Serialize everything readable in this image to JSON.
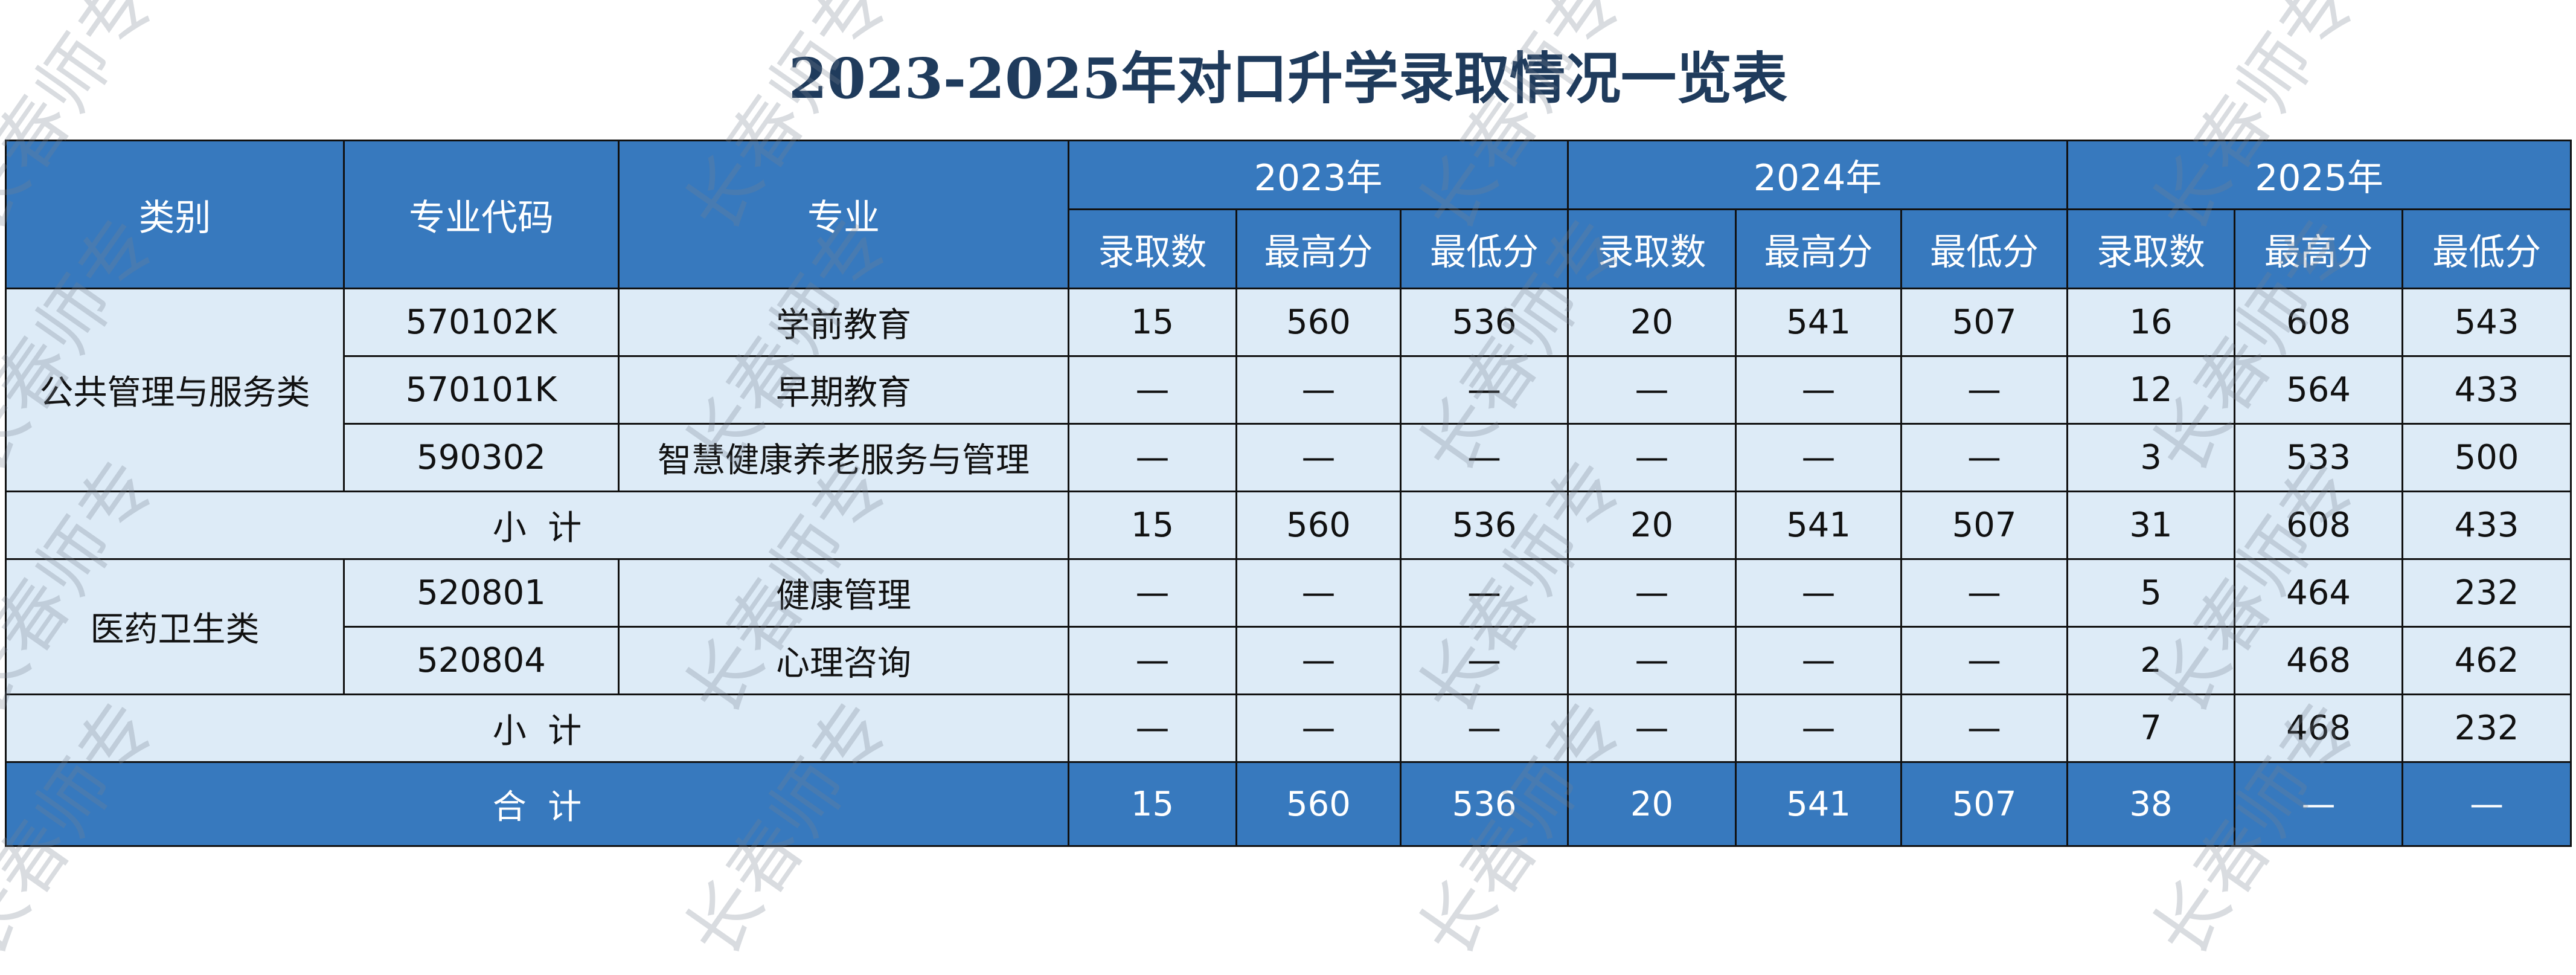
{
  "title": "2023-2025年对口升学录取情况一览表",
  "watermark": "长春师专",
  "colors": {
    "header_bg": "#3779be",
    "body_bg": "#ddebf7",
    "title": "#1f3b5c"
  },
  "header": {
    "category": "类别",
    "code": "专业代码",
    "major": "专业",
    "years": [
      "2023年",
      "2024年",
      "2025年"
    ],
    "sub": [
      "录取数",
      "最高分",
      "最低分"
    ]
  },
  "groups": [
    {
      "category": "公共管理与服务类",
      "rows": [
        {
          "code": "570102K",
          "major": "学前教育",
          "values": [
            "15",
            "560",
            "536",
            "20",
            "541",
            "507",
            "16",
            "608",
            "543"
          ]
        },
        {
          "code": "570101K",
          "major": "早期教育",
          "values": [
            "—",
            "—",
            "—",
            "—",
            "—",
            "—",
            "12",
            "564",
            "433"
          ]
        },
        {
          "code": "590302",
          "major": "智慧健康养老服务与管理",
          "values": [
            "—",
            "—",
            "—",
            "—",
            "—",
            "—",
            "3",
            "533",
            "500"
          ]
        }
      ],
      "subtotal": {
        "label": "小  计",
        "values": [
          "15",
          "560",
          "536",
          "20",
          "541",
          "507",
          "31",
          "608",
          "433"
        ]
      }
    },
    {
      "category": "医药卫生类",
      "rows": [
        {
          "code": "520801",
          "major": "健康管理",
          "values": [
            "—",
            "—",
            "—",
            "—",
            "—",
            "—",
            "5",
            "464",
            "232"
          ]
        },
        {
          "code": "520804",
          "major": "心理咨询",
          "values": [
            "—",
            "—",
            "—",
            "—",
            "—",
            "—",
            "2",
            "468",
            "462"
          ]
        }
      ],
      "subtotal": {
        "label": "小  计",
        "values": [
          "—",
          "—",
          "—",
          "—",
          "—",
          "—",
          "7",
          "468",
          "232"
        ]
      }
    }
  ],
  "total": {
    "label": "合  计",
    "values": [
      "15",
      "560",
      "536",
      "20",
      "541",
      "507",
      "38",
      "—",
      "—"
    ]
  }
}
